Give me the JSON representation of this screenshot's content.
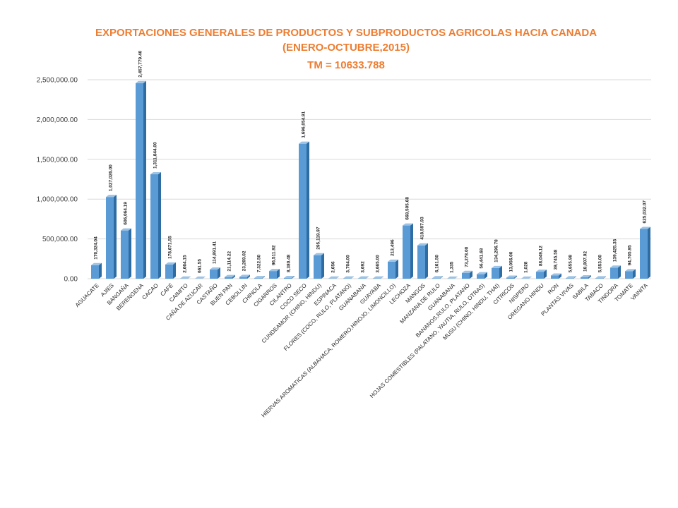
{
  "chart_data": {
    "type": "bar",
    "title": "EXPORTACIONES  GENERALES DE PRODUCTOS Y SUBPRODUCTOS AGRICOLAS  HACIA CANADA",
    "subtitle": "(ENERO-OCTUBRE,2015)",
    "subtitle2": "TM = 10633.788",
    "xlabel": "",
    "ylabel": "",
    "ylim": [
      0,
      2500000
    ],
    "yticks": [
      "0.00",
      "500,000.00",
      "1,000,000.00",
      "1,500,000.00",
      "2,000,000.00",
      "2,500,000.00"
    ],
    "ytick_values": [
      0,
      500000,
      1000000,
      1500000,
      2000000,
      2500000
    ],
    "grid": true,
    "legend": "none",
    "bar_color": "#5B9BD5",
    "bar_side_color": "#2E6DA4",
    "bar_top_color": "#9DC3E6",
    "title_color": "#ED7D31",
    "categories": [
      "AGUACATE",
      "AJIES",
      "BANGAÑA",
      "BERENGENA",
      "CACAO",
      "CAFÉ",
      "CAIMITO",
      "CAÑA DE AZUCAR",
      "CASTAÑO",
      "BUEN PAN",
      "CEBOLLIN",
      "CHINOLA",
      "CIGARROS",
      "CILANTRO",
      "COCO SECO",
      "CUNDEAMOR (CHINO, HINDU)",
      "ESPINACA",
      "FLORES  (COCO, RULO, PLATANO)",
      "GUANABANA",
      "GUAYABA",
      "HIERVAS AROMATICAS (ALBAHACA, ROMERO,HINOJO, LIMONCILLO)",
      "LECHOZA",
      "MANGOS",
      "MANZANA DE RULO",
      "GUANABANA",
      "BANANOS,RULO, PLATANO",
      "HOJAS COMESTIBLES (PALATANO, YAUTIA, RULO, OTRAS)",
      "MUSU (CHINO, HINDU, THAI)",
      "CITRICOS",
      "NISPERO",
      "OREGANO HINDU",
      "RON",
      "PLANTAS VIVAS",
      "SABILA",
      "TABACO",
      "TINDORA",
      "TOMATE",
      "VAINITA"
    ],
    "values": [
      170324.04,
      1027026.0,
      606064.19,
      2457779.4,
      1311844.0,
      178671.55,
      2664.15,
      661.55,
      114891.41,
      21114.22,
      23269.02,
      7322.5,
      96511.92,
      8380.48,
      1696054.91,
      295119.97,
      2656,
      3704.0,
      3692,
      3665.0,
      213496,
      668505.68,
      418597.93,
      6161.5,
      1335,
      73278.0,
      56441.68,
      134296.78,
      13056.0,
      1028,
      88049.12,
      39745.58,
      5655.98,
      18007.92,
      5553.0,
      139425.35,
      94705.95,
      625032.07
    ],
    "data_labels": [
      "170,324.04",
      "1,027,026.00",
      "606,064.19",
      "2,457,779.40",
      "1,311,844.00",
      "178,671.55",
      "2,664.15",
      "661.55",
      "114,891.41",
      "21,114.22",
      "23,269.02",
      "7,322.50",
      "96,511.92",
      "8,380.48",
      "1,696,054.91",
      "295,119.97",
      "2,656",
      "3,704.00",
      "3,692",
      "3,665.00",
      "213,496",
      "668,505.68",
      "418,597.93",
      "6,161.50",
      "1,335",
      "73,278.00",
      "56,441.68",
      "134,296.78",
      "13,056.00",
      "1,028",
      "88,049.12",
      "39,745.58",
      "5,655.98",
      "18,007.92",
      "5,553.00",
      "139,425.35",
      "94,705.95",
      "625,032.07"
    ]
  }
}
